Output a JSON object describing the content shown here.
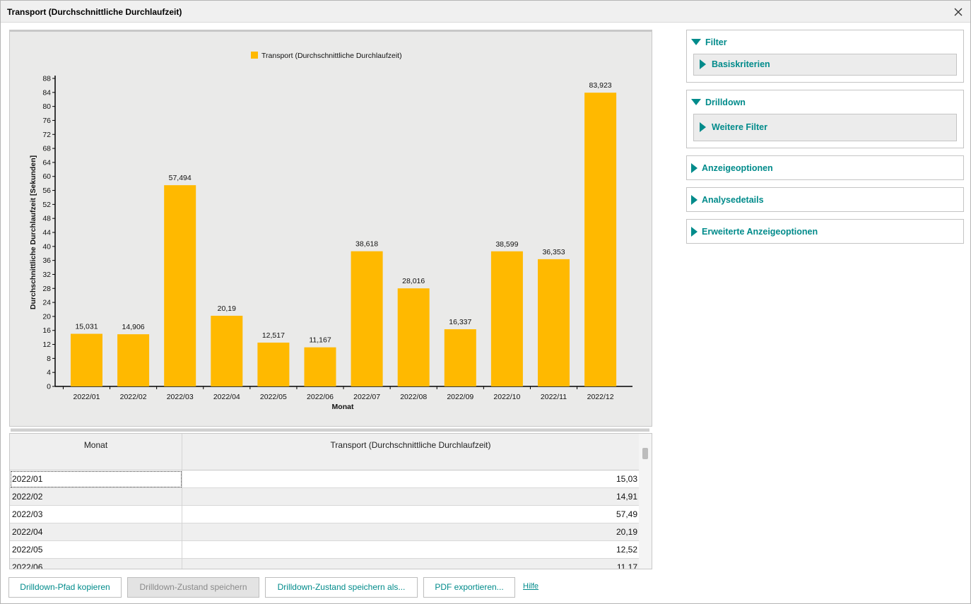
{
  "window": {
    "title": "Transport (Durchschnittliche Durchlaufzeit)"
  },
  "chart_data": {
    "type": "bar",
    "legend": "Transport (Durchschnittliche Durchlaufzeit)",
    "legend_position": "top-center",
    "categories": [
      "2022/01",
      "2022/02",
      "2022/03",
      "2022/04",
      "2022/05",
      "2022/06",
      "2022/07",
      "2022/08",
      "2022/09",
      "2022/10",
      "2022/11",
      "2022/12"
    ],
    "values": [
      15.031,
      14.906,
      57.494,
      20.19,
      12.517,
      11.167,
      38.618,
      28.016,
      16.337,
      38.599,
      36.353,
      83.923
    ],
    "data_labels": [
      "15,031",
      "14,906",
      "57,494",
      "20,19",
      "12,517",
      "11,167",
      "38,618",
      "28,016",
      "16,337",
      "38,599",
      "36,353",
      "83,923"
    ],
    "xlabel": "Monat",
    "ylabel": "Durchschnittliche Durchlaufzeit [Sekunden]",
    "ylim": [
      0,
      88
    ],
    "yticks": [
      0,
      4,
      8,
      12,
      16,
      20,
      24,
      28,
      32,
      36,
      40,
      44,
      48,
      52,
      56,
      60,
      64,
      68,
      72,
      76,
      80,
      84,
      88
    ],
    "bar_color": "#ffb900",
    "grid": false
  },
  "table": {
    "columns": [
      "Monat",
      "Transport (Durchschnittliche Durchlaufzeit)"
    ],
    "rows": [
      {
        "month": "2022/01",
        "value": "15,03"
      },
      {
        "month": "2022/02",
        "value": "14,91"
      },
      {
        "month": "2022/03",
        "value": "57,49"
      },
      {
        "month": "2022/04",
        "value": "20,19"
      },
      {
        "month": "2022/05",
        "value": "12,52"
      },
      {
        "month": "2022/06",
        "value": "11,17"
      }
    ]
  },
  "buttons": {
    "copy_path": "Drilldown-Pfad kopieren",
    "save_state": "Drilldown-Zustand speichern",
    "save_state_as": "Drilldown-Zustand speichern als...",
    "export_pdf": "PDF exportieren...",
    "help": "Hilfe"
  },
  "side": {
    "filter": {
      "label": "Filter",
      "expanded": true,
      "sub": "Basiskriterien"
    },
    "drilldown": {
      "label": "Drilldown",
      "expanded": true,
      "sub": "Weitere Filter"
    },
    "display_options": {
      "label": "Anzeigeoptionen"
    },
    "analysis_details": {
      "label": "Analysedetails"
    },
    "advanced_display_options": {
      "label": "Erweiterte Anzeigeoptionen"
    }
  },
  "colors": {
    "accent": "#008b8b",
    "bar": "#ffb900",
    "chart_background": "#eaeae9"
  },
  "icons": {
    "close": "close-icon",
    "expanded": "triangle-down-icon",
    "collapsed": "triangle-right-icon"
  }
}
